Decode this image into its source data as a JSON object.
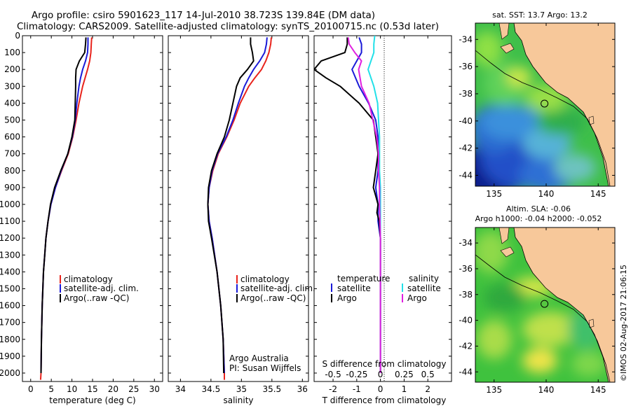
{
  "title_lines": [
    "Argo profile: csiro 5901623_117 14-Jul-2010 38.723S 139.84E (DM data)",
    "Climatology: CARS2009. Satellite-adjusted climatology: synTS_20100715.nc (0.53d later)"
  ],
  "colors": {
    "climatology": "#e8231c",
    "satellite": "#1a1ad8",
    "argo": "#000000",
    "salinity_satellite": "#22e0e8",
    "salinity_argo": "#e020e0",
    "land": "#f7c89a",
    "coast": "#000000"
  },
  "chart_data": [
    {
      "type": "line",
      "name": "temperature-profile",
      "xlabel": "temperature (deg C)",
      "ylabel": "",
      "xlim": [
        -2,
        32
      ],
      "ylim": [
        2050,
        0
      ],
      "xticks": [
        0,
        5,
        10,
        15,
        20,
        25,
        30
      ],
      "yticks": [
        0,
        100,
        200,
        300,
        400,
        500,
        600,
        700,
        800,
        900,
        1000,
        1100,
        1200,
        1300,
        1400,
        1500,
        1600,
        1700,
        1800,
        1900,
        2000
      ],
      "legend_placement": "lower-center",
      "legend": [
        "climatology",
        "satellite-adj. clim.",
        "Argo(..raw -QC)"
      ],
      "series": [
        {
          "name": "climatology",
          "depth": [
            10,
            50,
            100,
            150,
            200,
            250,
            300,
            400,
            500,
            600,
            700,
            800,
            900,
            1000,
            1100,
            1200,
            1300,
            1400,
            1600,
            1800,
            2000,
            2040
          ],
          "values": [
            14.8,
            14.7,
            14.6,
            14.3,
            13.8,
            13.2,
            12.6,
            11.7,
            11.0,
            10.2,
            9.1,
            7.5,
            6.0,
            4.9,
            4.2,
            3.7,
            3.4,
            3.1,
            2.8,
            2.6,
            2.5,
            2.4
          ]
        },
        {
          "name": "satellite-adj. clim.",
          "depth": [
            10,
            50,
            100,
            150,
            200,
            250,
            300,
            400,
            500,
            600,
            700,
            800,
            900,
            1000,
            1100,
            1200,
            1300,
            1400,
            1600,
            1800,
            2000
          ],
          "values": [
            13.9,
            13.9,
            13.8,
            13.3,
            12.6,
            12.1,
            11.7,
            11.2,
            10.8,
            10.1,
            9.0,
            7.4,
            6.0,
            4.9,
            4.2,
            3.7,
            3.4,
            3.1,
            2.8,
            2.6,
            2.5
          ]
        },
        {
          "name": "Argo(..raw -QC)",
          "depth": [
            10,
            50,
            100,
            150,
            200,
            250,
            300,
            400,
            500,
            600,
            700,
            800,
            900,
            1000,
            1100,
            1200,
            1300,
            1400,
            1600,
            1800,
            2000
          ],
          "values": [
            13.4,
            13.3,
            13.1,
            11.8,
            11.0,
            10.9,
            10.9,
            10.8,
            10.7,
            10.0,
            9.0,
            7.3,
            5.8,
            4.8,
            4.2,
            3.7,
            3.4,
            3.1,
            2.8,
            2.6,
            2.5
          ]
        }
      ]
    },
    {
      "type": "line",
      "name": "salinity-profile",
      "xlabel": "salinity",
      "ylabel": "",
      "xlim": [
        33.8,
        36.1
      ],
      "ylim": [
        2050,
        0
      ],
      "xticks": [
        34,
        34.5,
        35,
        35.5,
        36
      ],
      "legend_placement": "lower-center",
      "legend": [
        "climatology",
        "satellite-adj. clim.",
        "Argo(..raw -QC)"
      ],
      "annotation": [
        "Argo Australia",
        "PI: Susan Wijffels"
      ],
      "series": [
        {
          "name": "climatology",
          "depth": [
            10,
            50,
            100,
            150,
            200,
            250,
            300,
            400,
            500,
            600,
            700,
            800,
            900,
            1000,
            1100,
            1200,
            1400,
            1600,
            1800,
            2000,
            2040
          ],
          "values": [
            35.49,
            35.48,
            35.45,
            35.4,
            35.33,
            35.22,
            35.12,
            34.98,
            34.88,
            34.76,
            34.62,
            34.53,
            34.47,
            34.45,
            34.47,
            34.52,
            34.6,
            34.66,
            34.7,
            34.72,
            34.72
          ]
        },
        {
          "name": "satellite-adj. clim.",
          "depth": [
            10,
            50,
            100,
            150,
            200,
            250,
            300,
            400,
            500,
            600,
            700,
            800,
            900,
            1000,
            1100,
            1200,
            1400,
            1600,
            1800,
            2000
          ],
          "values": [
            35.42,
            35.41,
            35.38,
            35.3,
            35.2,
            35.12,
            35.05,
            34.95,
            34.86,
            34.75,
            34.61,
            34.52,
            34.47,
            34.45,
            34.47,
            34.52,
            34.6,
            34.66,
            34.7,
            34.72
          ]
        },
        {
          "name": "Argo(..raw -QC)",
          "depth": [
            10,
            50,
            100,
            150,
            200,
            250,
            300,
            400,
            500,
            600,
            700,
            800,
            900,
            1000,
            1100,
            1200,
            1400,
            1600,
            1800,
            2000
          ],
          "values": [
            35.15,
            35.15,
            35.18,
            35.2,
            35.1,
            34.98,
            34.92,
            34.86,
            34.8,
            34.72,
            34.6,
            34.51,
            34.46,
            34.45,
            34.46,
            34.51,
            34.6,
            34.66,
            34.7,
            34.71
          ]
        }
      ]
    },
    {
      "type": "line",
      "name": "difference-profile",
      "xlabel": "T difference from climatology",
      "xlabel_top": "S difference from climatology",
      "xlim": [
        -2.8,
        3.0
      ],
      "ylim": [
        2050,
        0
      ],
      "xticks_T": [
        -2,
        -1,
        0,
        1,
        2
      ],
      "xticks_S": [
        "-0.5",
        "-0.25",
        "0",
        "0.25",
        "0.5"
      ],
      "legend_placement": "lower-center",
      "legend_headers": [
        "temperature",
        "salinity"
      ],
      "legend": [
        "satellite",
        "Argo",
        "satellite",
        "Argo"
      ],
      "series": [
        {
          "name": "T satellite",
          "depth": [
            10,
            50,
            100,
            150,
            200,
            300,
            400,
            500,
            600,
            700,
            800,
            900,
            1000,
            1100,
            1200,
            1400,
            1600,
            2000
          ],
          "values": [
            -0.9,
            -0.8,
            -0.8,
            -1.0,
            -1.2,
            -0.9,
            -0.5,
            -0.2,
            -0.1,
            -0.1,
            -0.1,
            -0.2,
            -0.1,
            -0.1,
            0,
            0,
            0,
            0
          ]
        },
        {
          "name": "T Argo",
          "depth": [
            10,
            50,
            100,
            150,
            200,
            250,
            300,
            400,
            500,
            600,
            700,
            800,
            900,
            950,
            1000,
            1050,
            1100,
            1200,
            1400,
            1600,
            2000
          ],
          "values": [
            -1.4,
            -1.4,
            -1.5,
            -2.5,
            -2.8,
            -2.3,
            -1.7,
            -0.9,
            -0.3,
            -0.2,
            -0.1,
            -0.2,
            -0.3,
            -0.2,
            -0.1,
            -0.15,
            -0.05,
            0,
            0,
            0,
            0
          ]
        },
        {
          "name": "S satellite",
          "depth": [
            0,
            50,
            100,
            150,
            200,
            300,
            400,
            500,
            600,
            700,
            800,
            900,
            1000,
            1200,
            1400,
            1600,
            2000
          ],
          "values": [
            -0.06,
            -0.07,
            -0.07,
            -0.1,
            -0.13,
            -0.07,
            -0.03,
            -0.02,
            -0.01,
            -0.01,
            -0.01,
            0,
            0,
            0,
            0,
            0,
            0
          ]
        },
        {
          "name": "S Argo",
          "depth": [
            10,
            50,
            100,
            150,
            200,
            300,
            400,
            500,
            600,
            700,
            800,
            900,
            1000,
            1200,
            1400,
            1600,
            2000
          ],
          "values": [
            -0.34,
            -0.33,
            -0.27,
            -0.2,
            -0.23,
            -0.2,
            -0.12,
            -0.08,
            -0.04,
            -0.02,
            -0.02,
            -0.01,
            -0.01,
            0,
            0,
            0,
            0
          ]
        }
      ]
    },
    {
      "type": "heatmap",
      "name": "sst-map",
      "title": "sat. SST: 13.7 Argo: 13.2",
      "xlim": [
        133.2,
        146.6
      ],
      "ylim": [
        -44.8,
        -32.8
      ],
      "xticks": [
        135,
        140,
        145
      ],
      "yticks": [
        -34,
        -36,
        -38,
        -40,
        -42,
        -44
      ],
      "marker": {
        "lon": 139.84,
        "lat": -38.723
      }
    },
    {
      "type": "heatmap",
      "name": "sla-map",
      "title_lines": [
        "Altim. SLA: -0.06",
        "Argo h1000: -0.04 h2000: -0.052"
      ],
      "xlim": [
        133.2,
        146.6
      ],
      "ylim": [
        -44.8,
        -32.8
      ],
      "xticks": [
        135,
        140,
        145
      ],
      "yticks": [
        -34,
        -36,
        -38,
        -40,
        -42,
        -44
      ],
      "marker": {
        "lon": 139.84,
        "lat": -38.723
      }
    }
  ],
  "watermark": "©IMOS 02-Aug-2017 21:06:15"
}
